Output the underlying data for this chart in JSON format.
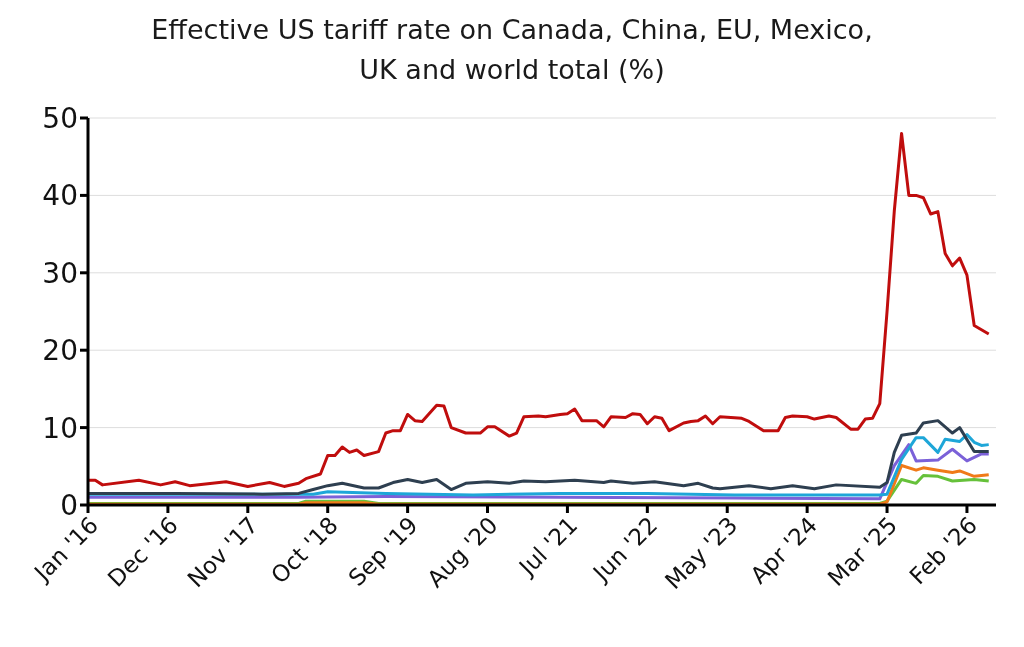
{
  "chart_data": {
    "type": "line",
    "title": "Effective US tariff rate on Canada, China, EU, Mexico, UK and world total (%)",
    "xlim": [
      "2016-01",
      "2026-06"
    ],
    "xticks": [
      {
        "value": "2016-01",
        "label": "Jan '16"
      },
      {
        "value": "2016-12",
        "label": "Dec '16"
      },
      {
        "value": "2017-11",
        "label": "Nov '17"
      },
      {
        "value": "2018-10",
        "label": "Oct '18"
      },
      {
        "value": "2019-09",
        "label": "Sep '19"
      },
      {
        "value": "2020-08",
        "label": "Aug '20"
      },
      {
        "value": "2021-07",
        "label": "Jul '21"
      },
      {
        "value": "2022-06",
        "label": "Jun '22"
      },
      {
        "value": "2023-05",
        "label": "May '23"
      },
      {
        "value": "2024-04",
        "label": "Apr '24"
      },
      {
        "value": "2025-03",
        "label": "Mar '25"
      },
      {
        "value": "2026-02",
        "label": "Feb '26"
      }
    ],
    "ylim": [
      0,
      50
    ],
    "yticks": [
      0,
      10,
      20,
      30,
      40,
      50
    ],
    "grid": "y",
    "series": [
      {
        "color": "#66c13a",
        "x": [
          "2016-01",
          "2018-06",
          "2018-07",
          "2019-03",
          "2019-05",
          "2025-02",
          "2025-03",
          "2025-05",
          "2025-07",
          "2025-08",
          "2025-10",
          "2025-12",
          "2026-03",
          "2026-05"
        ],
        "values": [
          0.2,
          0.2,
          0.5,
          0.5,
          0.2,
          0.2,
          0.5,
          3.3,
          2.8,
          3.8,
          3.7,
          3.1,
          3.3,
          3.1
        ]
      },
      {
        "color": "#f07a18",
        "x": [
          "2016-01",
          "2018-06",
          "2018-07",
          "2019-03",
          "2019-05",
          "2025-02",
          "2025-03",
          "2025-05",
          "2025-07",
          "2025-08",
          "2025-10",
          "2025-12",
          "2026-01",
          "2026-03",
          "2026-05"
        ],
        "values": [
          0.1,
          0.1,
          0.3,
          0.3,
          0.1,
          0.1,
          0.4,
          5.1,
          4.5,
          4.8,
          4.5,
          4.2,
          4.4,
          3.7,
          3.9
        ]
      },
      {
        "color": "#7b61d8",
        "x": [
          "2016-01",
          "2018-06",
          "2019-06",
          "2021-06",
          "2023-06",
          "2025-02",
          "2025-04",
          "2025-06",
          "2025-07",
          "2025-10",
          "2025-12",
          "2026-02",
          "2026-04",
          "2026-05"
        ],
        "values": [
          1.0,
          1.0,
          1.1,
          1.0,
          0.9,
          0.8,
          5.1,
          7.8,
          5.7,
          5.8,
          7.2,
          5.7,
          6.6,
          6.6
        ]
      },
      {
        "color": "#1ea6d8",
        "x": [
          "2016-01",
          "2018-08",
          "2018-10",
          "2019-06",
          "2020-06",
          "2021-06",
          "2022-06",
          "2023-06",
          "2024-06",
          "2025-02",
          "2025-03",
          "2025-05",
          "2025-07",
          "2025-08",
          "2025-10",
          "2025-11",
          "2026-01",
          "2026-02",
          "2026-03",
          "2026-04",
          "2026-05"
        ],
        "values": [
          1.4,
          1.4,
          1.7,
          1.5,
          1.3,
          1.5,
          1.5,
          1.3,
          1.3,
          1.3,
          1.4,
          5.9,
          8.7,
          8.7,
          6.8,
          8.5,
          8.2,
          9.1,
          8.1,
          7.7,
          7.8
        ]
      },
      {
        "color": "#2e3f50",
        "x": [
          "2016-01",
          "2017-01",
          "2018-01",
          "2018-06",
          "2018-08",
          "2018-10",
          "2018-12",
          "2019-03",
          "2019-05",
          "2019-07",
          "2019-09",
          "2019-11",
          "2020-01",
          "2020-03",
          "2020-05",
          "2020-08",
          "2020-11",
          "2021-01",
          "2021-04",
          "2021-08",
          "2021-12",
          "2022-01",
          "2022-04",
          "2022-07",
          "2022-11",
          "2023-01",
          "2023-03",
          "2023-04",
          "2023-08",
          "2023-11",
          "2024-02",
          "2024-05",
          "2024-08",
          "2025-02",
          "2025-03",
          "2025-04",
          "2025-05",
          "2025-07",
          "2025-08",
          "2025-10",
          "2025-12",
          "2026-01",
          "2026-03",
          "2026-05"
        ],
        "values": [
          1.5,
          1.5,
          1.4,
          1.5,
          2.0,
          2.5,
          2.8,
          2.2,
          2.2,
          2.9,
          3.3,
          2.9,
          3.3,
          2.0,
          2.8,
          3.0,
          2.8,
          3.1,
          3.0,
          3.2,
          2.9,
          3.1,
          2.8,
          3.0,
          2.5,
          2.8,
          2.2,
          2.1,
          2.5,
          2.1,
          2.5,
          2.1,
          2.6,
          2.3,
          2.9,
          6.8,
          9.0,
          9.3,
          10.6,
          10.9,
          9.3,
          10.0,
          6.9,
          6.9
        ]
      },
      {
        "color": "#c00d0d",
        "x": [
          "2016-01",
          "2016-02",
          "2016-03",
          "2016-08",
          "2016-11",
          "2017-01",
          "2017-03",
          "2017-08",
          "2017-11",
          "2018-02",
          "2018-04",
          "2018-06",
          "2018-07",
          "2018-09",
          "2018-10",
          "2018-11",
          "2018-12",
          "2019-01",
          "2019-02",
          "2019-03",
          "2019-05",
          "2019-06",
          "2019-07",
          "2019-08",
          "2019-09",
          "2019-10",
          "2019-11",
          "2020-01",
          "2020-02",
          "2020-03",
          "2020-05",
          "2020-07",
          "2020-08",
          "2020-09",
          "2020-11",
          "2020-12",
          "2021-01",
          "2021-03",
          "2021-04",
          "2021-06",
          "2021-07",
          "2021-08",
          "2021-09",
          "2021-11",
          "2021-12",
          "2022-01",
          "2022-03",
          "2022-04",
          "2022-05",
          "2022-06",
          "2022-07",
          "2022-08",
          "2022-09",
          "2022-11",
          "2022-12",
          "2023-01",
          "2023-02",
          "2023-03",
          "2023-04",
          "2023-07",
          "2023-08",
          "2023-10",
          "2023-12",
          "2024-01",
          "2024-02",
          "2024-04",
          "2024-05",
          "2024-07",
          "2024-08",
          "2024-10",
          "2024-11",
          "2024-12",
          "2025-01",
          "2025-02",
          "2025-03",
          "2025-04",
          "2025-05",
          "2025-06",
          "2025-07",
          "2025-08",
          "2025-09",
          "2025-10",
          "2025-11",
          "2025-12",
          "2026-01",
          "2026-02",
          "2026-03",
          "2026-05"
        ],
        "values": [
          3.2,
          3.2,
          2.6,
          3.2,
          2.6,
          3.0,
          2.5,
          3.0,
          2.4,
          2.9,
          2.4,
          2.8,
          3.4,
          4.0,
          6.4,
          6.4,
          7.5,
          6.8,
          7.1,
          6.4,
          6.9,
          9.3,
          9.6,
          9.6,
          11.7,
          10.9,
          10.8,
          12.9,
          12.8,
          10.0,
          9.3,
          9.3,
          10.1,
          10.1,
          8.9,
          9.3,
          11.4,
          11.5,
          11.4,
          11.7,
          11.8,
          12.4,
          10.9,
          10.9,
          10.1,
          11.4,
          11.3,
          11.8,
          11.7,
          10.5,
          11.4,
          11.2,
          9.6,
          10.6,
          10.8,
          10.9,
          11.5,
          10.5,
          11.4,
          11.2,
          10.8,
          9.6,
          9.6,
          11.3,
          11.5,
          11.4,
          11.1,
          11.5,
          11.3,
          9.8,
          9.8,
          11.1,
          11.2,
          13.1,
          25,
          38,
          48,
          40,
          40,
          39.7,
          37.6,
          37.9,
          32.5,
          30.9,
          31.9,
          29.7,
          23.2,
          22.1
        ]
      }
    ]
  }
}
